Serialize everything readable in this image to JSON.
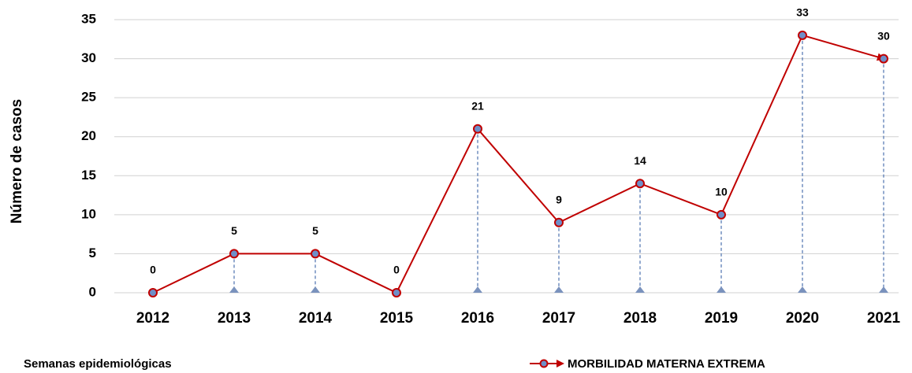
{
  "chart_data": {
    "type": "line",
    "y_label": "Número de casos",
    "x_label": "Semanas epidemiológicas",
    "categories": [
      "2012",
      "2013",
      "2014",
      "2015",
      "2016",
      "2017",
      "2018",
      "2019",
      "2020",
      "2021"
    ],
    "series": [
      {
        "name": "MORBILIDAD MATERNA EXTREMA",
        "color": "#c00000",
        "values": [
          0,
          5,
          5,
          0,
          21,
          9,
          14,
          10,
          33,
          30
        ]
      }
    ],
    "ylim": [
      0,
      35
    ],
    "yticks": [
      0,
      5,
      10,
      15,
      20,
      25,
      30,
      35
    ],
    "grid": true
  }
}
